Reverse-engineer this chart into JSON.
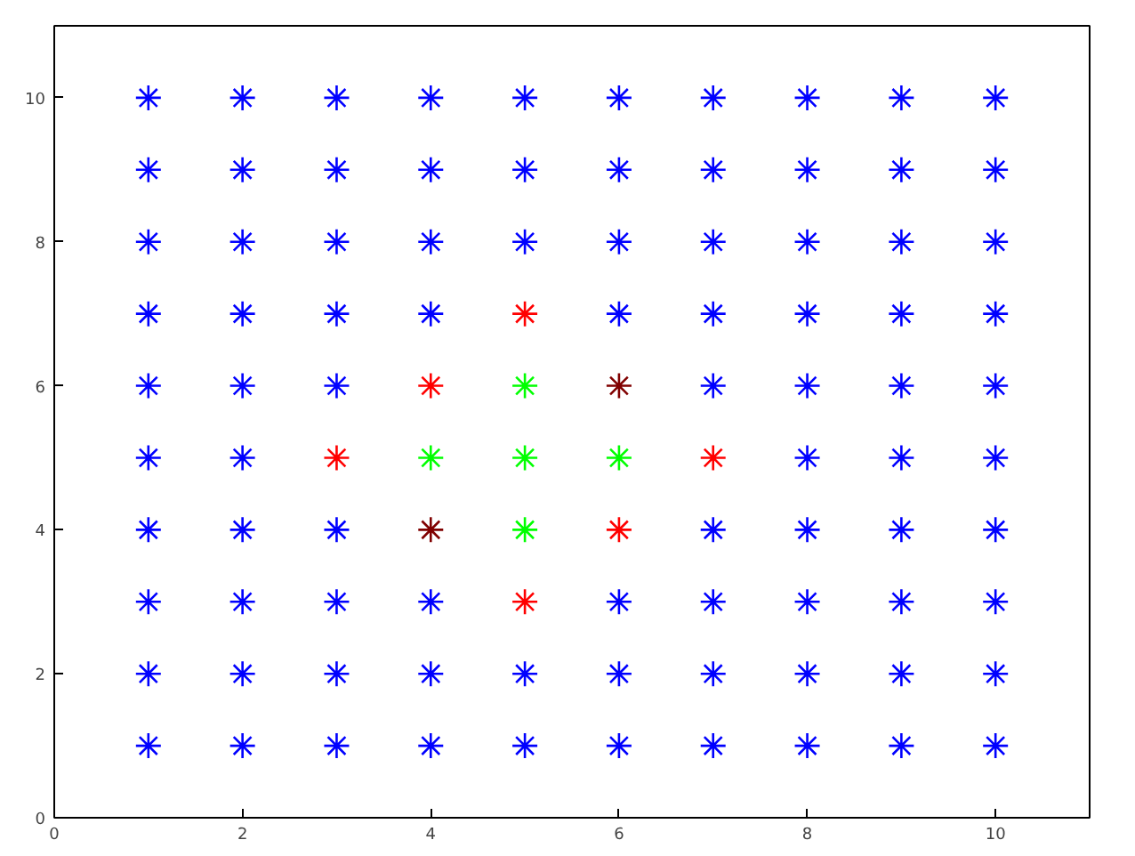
{
  "chart_data": {
    "type": "scatter",
    "xlim": [
      0,
      11
    ],
    "ylim": [
      0,
      11
    ],
    "xticks": [
      0,
      2,
      4,
      6,
      8,
      10
    ],
    "yticks": [
      0,
      2,
      4,
      6,
      8,
      10
    ],
    "grid": false,
    "marker": "cross",
    "series": [
      {
        "color": "#0000ff",
        "x": [
          1,
          1,
          1,
          1,
          1,
          1,
          1,
          1,
          1,
          2,
          2,
          2,
          2,
          2,
          2,
          2,
          2,
          2,
          3,
          3,
          3,
          3,
          3,
          3,
          3,
          3,
          4,
          4,
          4,
          4,
          4,
          4,
          4,
          5,
          5,
          5,
          5,
          5,
          6,
          6,
          6,
          6,
          6,
          6,
          6,
          7,
          7,
          7,
          7,
          7,
          7,
          7,
          7,
          8,
          8,
          8,
          8,
          8,
          8,
          8,
          8,
          8,
          9,
          9,
          9,
          9,
          9,
          9,
          9,
          9,
          9,
          10,
          10,
          10,
          10,
          10,
          10,
          10,
          10,
          10
        ],
        "values": [
          2,
          3,
          4,
          5,
          6,
          7,
          8,
          9,
          10,
          1,
          3,
          4,
          5,
          6,
          7,
          8,
          9,
          10,
          1,
          2,
          4,
          6,
          7,
          8,
          9,
          10,
          1,
          2,
          3,
          7,
          8,
          9,
          10,
          1,
          2,
          8,
          9,
          10,
          1,
          2,
          3,
          7,
          8,
          9,
          10,
          1,
          2,
          3,
          4,
          6,
          8,
          9,
          10,
          1,
          2,
          3,
          4,
          5,
          6,
          7,
          9,
          10,
          1,
          2,
          3,
          4,
          5,
          6,
          7,
          8,
          10,
          1,
          2,
          3,
          4,
          5,
          6,
          7,
          8,
          9
        ]
      },
      {
        "color": "#0000ff",
        "x": [
          1,
          2,
          3,
          7,
          8,
          9,
          10
        ],
        "values": [
          1,
          2,
          3,
          7,
          8,
          9,
          10
        ]
      },
      {
        "color": "#ff0000",
        "x": [
          5,
          4,
          3,
          7,
          6,
          5
        ],
        "values": [
          7,
          6,
          5,
          5,
          4,
          3
        ]
      },
      {
        "color": "#800000",
        "x": [
          6,
          4
        ],
        "values": [
          6,
          4
        ]
      },
      {
        "color": "#00ff00",
        "x": [
          5,
          4,
          5,
          6,
          5
        ],
        "values": [
          6,
          5,
          5,
          5,
          4
        ]
      }
    ]
  }
}
